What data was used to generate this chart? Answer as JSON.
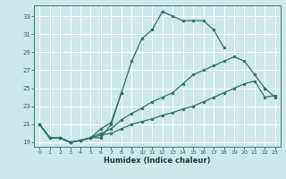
{
  "xlabel": "Humidex (Indice chaleur)",
  "background_color": "#cde8e8",
  "grid_color": "#ffffff",
  "line_color": "#2e7068",
  "xlim": [
    -0.5,
    23.5
  ],
  "ylim": [
    18.5,
    34.2
  ],
  "yticks": [
    19,
    21,
    23,
    25,
    27,
    29,
    31,
    33
  ],
  "xticks": [
    0,
    1,
    2,
    3,
    4,
    5,
    6,
    7,
    8,
    9,
    10,
    11,
    12,
    13,
    14,
    15,
    16,
    17,
    18,
    19,
    20,
    21,
    22,
    23
  ],
  "series": [
    {
      "x": [
        0,
        1,
        2,
        3,
        4,
        5,
        6,
        7,
        8
      ],
      "y": [
        21.0,
        19.5,
        19.5,
        19.0,
        19.2,
        19.5,
        19.5,
        21.0,
        24.5
      ]
    },
    {
      "x": [
        0,
        1,
        2,
        3,
        4,
        5,
        6,
        7,
        8,
        9,
        10,
        11,
        12,
        13,
        14,
        15,
        16,
        17,
        18
      ],
      "y": [
        21.0,
        19.5,
        19.5,
        19.0,
        19.2,
        19.5,
        20.5,
        21.2,
        24.5,
        28.0,
        30.5,
        31.5,
        33.5,
        33.0,
        32.5,
        32.5,
        32.5,
        31.5,
        29.5
      ]
    },
    {
      "x": [
        0,
        1,
        2,
        3,
        4,
        5,
        6,
        7,
        8,
        9,
        10,
        11,
        12,
        13,
        14,
        15,
        16,
        17,
        18,
        19,
        20,
        21,
        22,
        23
      ],
      "y": [
        21.0,
        19.5,
        19.5,
        19.0,
        19.2,
        19.5,
        20.0,
        20.5,
        21.5,
        22.2,
        22.8,
        23.5,
        24.0,
        24.5,
        25.5,
        26.5,
        27.0,
        27.5,
        28.0,
        28.5,
        28.0,
        26.5,
        25.0,
        24.0
      ]
    },
    {
      "x": [
        0,
        1,
        2,
        3,
        4,
        5,
        6,
        7,
        8,
        9,
        10,
        11,
        12,
        13,
        14,
        15,
        16,
        17,
        18,
        19,
        20,
        21,
        22,
        23
      ],
      "y": [
        21.0,
        19.5,
        19.5,
        19.0,
        19.2,
        19.5,
        19.8,
        20.0,
        20.5,
        21.0,
        21.3,
        21.6,
        22.0,
        22.3,
        22.7,
        23.0,
        23.5,
        24.0,
        24.5,
        25.0,
        25.5,
        25.8,
        24.0,
        24.2
      ]
    }
  ]
}
